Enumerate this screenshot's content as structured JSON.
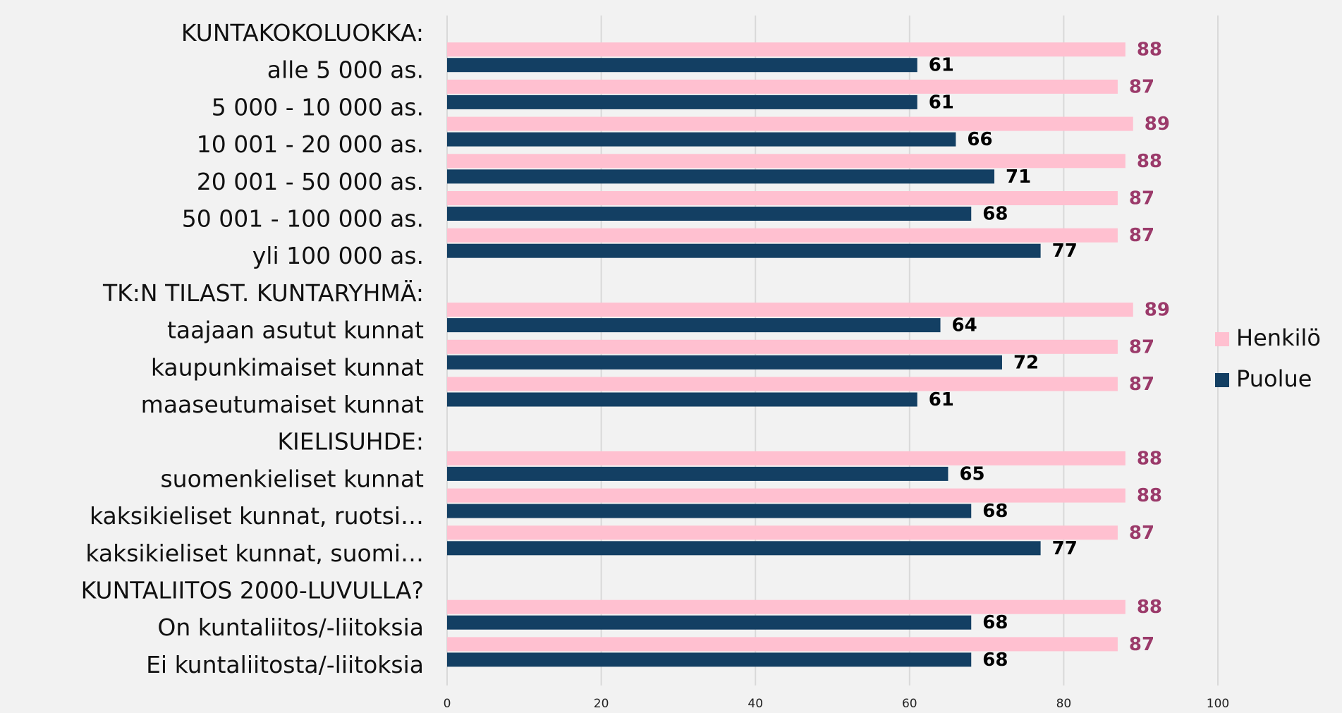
{
  "chart_data": {
    "type": "hbar",
    "categories": [
      "KUNTAKOKOLUOKKA:",
      "alle 5 000 as.",
      "5 000 - 10 000 as.",
      "10 001 - 20 000 as.",
      "20 001 - 50 000 as.",
      "50 001 - 100 000 as.",
      "yli 100 000 as.",
      "TK:N TILAST. KUNTARYHMÄ:",
      "taajaan asutut kunnat",
      "kaupunkimaiset kunnat",
      "maaseutumaiset kunnat",
      "KIELISUHDE:",
      "suomenkieliset kunnat",
      "kaksikieliset kunnat, ruotsi…",
      "kaksikieliset kunnat, suomi…",
      "KUNTALIITOS 2000-LUVULLA?",
      "On kuntaliitos/-liitoksia",
      "Ei kuntaliitosta/-liitoksia"
    ],
    "series": [
      {
        "name": "Henkilö",
        "color": "#ffc0d0",
        "label_color": "#9b3a6a",
        "values": [
          null,
          88,
          87,
          89,
          88,
          87,
          87,
          null,
          89,
          87,
          87,
          null,
          88,
          88,
          87,
          null,
          88,
          87
        ]
      },
      {
        "name": "Puolue",
        "color": "#133f63",
        "label_color": "#000000",
        "values": [
          null,
          61,
          61,
          66,
          71,
          68,
          77,
          null,
          64,
          72,
          61,
          null,
          65,
          68,
          77,
          null,
          68,
          68
        ]
      }
    ],
    "xlim": [
      0,
      100
    ],
    "xticks": [
      0,
      20,
      40,
      60,
      80,
      100
    ],
    "grid": true,
    "legend": "right"
  }
}
